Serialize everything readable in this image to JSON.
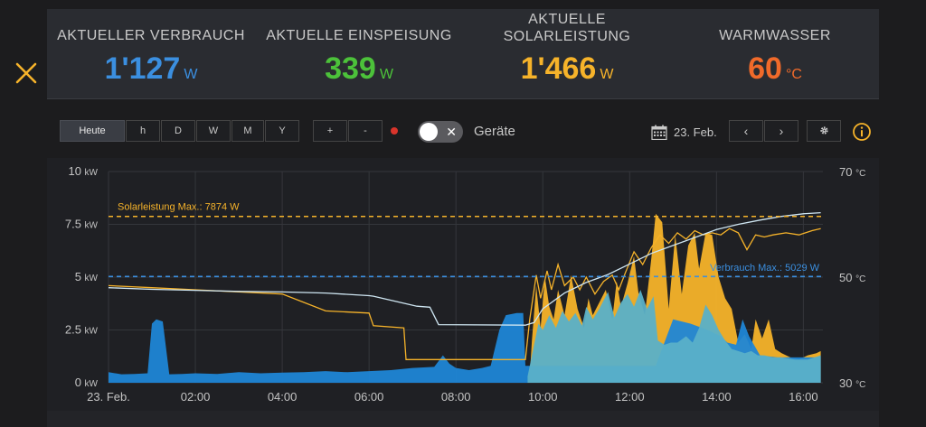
{
  "stats": [
    {
      "label": "AKTUELLER VERBRAUCH",
      "value": "1'127",
      "unit": "W",
      "color": "#3b8fe0"
    },
    {
      "label": "AKTUELLE EINSPEISUNG",
      "value": "339",
      "unit": "W",
      "color": "#4cc23a"
    },
    {
      "label": "AKTUELLE\nSOLARLEISTUNG",
      "value": "1'466",
      "unit": "W",
      "color": "#f6b32a"
    },
    {
      "label": "WARMWASSER",
      "value": "60",
      "unit": "°C",
      "color": "#f06a2a"
    }
  ],
  "toolbar": {
    "range_buttons": [
      "Heute",
      "h",
      "D",
      "W",
      "M",
      "Y"
    ],
    "active_range": "Heute",
    "zoom_in": "+",
    "zoom_out": "-",
    "toggle_label": "Geräte",
    "date": "23. Feb.",
    "prev": "‹",
    "next": "›"
  },
  "icons": {
    "close": "close-icon",
    "calendar": "calendar-icon",
    "settings": "gear-icon",
    "info": "info-icon"
  },
  "chart_data": {
    "type": "area",
    "x_ticks": [
      "23. Feb.",
      "02:00",
      "04:00",
      "06:00",
      "08:00",
      "10:00",
      "12:00",
      "14:00",
      "16:00"
    ],
    "y_left": {
      "ticks": [
        "0 kW",
        "2.5 kW",
        "5 kW",
        "7.5 kW",
        "10 kW"
      ],
      "range": [
        0,
        10
      ]
    },
    "y_right": {
      "ticks": [
        "30 °C",
        "50 °C",
        "70 °C"
      ],
      "range": [
        30,
        70
      ]
    },
    "grid": true,
    "reference_lines": [
      {
        "label": "Solarleistung Max.: 7874 W",
        "value": 7.874,
        "color": "#f6b32a"
      },
      {
        "label": "Verbrauch Max.: 5029 W",
        "value": 5.029,
        "color": "#3b8fe0"
      }
    ],
    "series": [
      {
        "kind": "solar-area",
        "color": "#f6b32a",
        "points": [
          [
            9.7,
            0.3
          ],
          [
            9.75,
            2.0
          ],
          [
            9.85,
            4.6
          ],
          [
            9.95,
            2.6
          ],
          [
            10.05,
            5.0
          ],
          [
            10.15,
            3.6
          ],
          [
            10.25,
            3.0
          ],
          [
            10.35,
            4.4
          ],
          [
            10.5,
            3.2
          ],
          [
            10.65,
            5.1
          ],
          [
            10.8,
            3.5
          ],
          [
            10.95,
            2.6
          ],
          [
            11.05,
            4.0
          ],
          [
            11.15,
            3.2
          ],
          [
            11.3,
            3.8
          ],
          [
            11.45,
            4.4
          ],
          [
            11.6,
            3.0
          ],
          [
            11.7,
            4.8
          ],
          [
            11.8,
            3.6
          ],
          [
            11.95,
            4.7
          ],
          [
            12.1,
            6.0
          ],
          [
            12.2,
            4.3
          ],
          [
            12.35,
            3.2
          ],
          [
            12.5,
            5.9
          ],
          [
            12.6,
            8.0
          ],
          [
            12.75,
            7.6
          ],
          [
            12.9,
            3.5
          ],
          [
            13.05,
            7.0
          ],
          [
            13.2,
            4.2
          ],
          [
            13.35,
            6.5
          ],
          [
            13.5,
            7.1
          ],
          [
            13.6,
            5.4
          ],
          [
            13.75,
            7.1
          ],
          [
            13.9,
            7.0
          ],
          [
            14.05,
            5.0
          ],
          [
            14.2,
            4.0
          ],
          [
            14.35,
            3.5
          ],
          [
            14.5,
            1.9
          ],
          [
            14.65,
            2.3
          ],
          [
            14.8,
            1.6
          ],
          [
            14.9,
            3.0
          ],
          [
            15.05,
            2.1
          ],
          [
            15.2,
            3.0
          ],
          [
            15.35,
            1.6
          ],
          [
            15.5,
            1.4
          ],
          [
            15.7,
            1.2
          ],
          [
            15.9,
            1.1
          ],
          [
            16.1,
            1.3
          ],
          [
            16.3,
            1.4
          ],
          [
            16.4,
            1.5
          ]
        ]
      },
      {
        "kind": "consumption-area",
        "color": "#1f86d6",
        "points": [
          [
            0.0,
            0.5
          ],
          [
            0.3,
            0.4
          ],
          [
            0.6,
            0.42
          ],
          [
            0.9,
            0.45
          ],
          [
            1.0,
            2.8
          ],
          [
            1.1,
            3.0
          ],
          [
            1.25,
            2.9
          ],
          [
            1.4,
            0.4
          ],
          [
            1.7,
            0.42
          ],
          [
            2.0,
            0.45
          ],
          [
            2.5,
            0.42
          ],
          [
            3.0,
            0.5
          ],
          [
            3.5,
            0.45
          ],
          [
            4.0,
            0.48
          ],
          [
            4.5,
            0.5
          ],
          [
            5.0,
            0.55
          ],
          [
            5.5,
            0.5
          ],
          [
            6.0,
            0.55
          ],
          [
            6.5,
            0.6
          ],
          [
            7.0,
            0.7
          ],
          [
            7.5,
            0.75
          ],
          [
            7.7,
            1.3
          ],
          [
            7.85,
            0.9
          ],
          [
            8.0,
            0.7
          ],
          [
            8.3,
            0.6
          ],
          [
            8.6,
            0.7
          ],
          [
            8.8,
            0.8
          ],
          [
            9.0,
            2.5
          ],
          [
            9.15,
            3.2
          ],
          [
            9.4,
            3.3
          ],
          [
            9.55,
            3.3
          ],
          [
            9.6,
            0.8
          ],
          [
            9.7,
            0.8
          ],
          [
            12.6,
            0.8
          ],
          [
            13.0,
            3.0
          ],
          [
            13.4,
            2.8
          ],
          [
            13.8,
            2.5
          ],
          [
            14.1,
            2.2
          ],
          [
            14.25,
            1.9
          ],
          [
            14.45,
            1.8
          ],
          [
            14.6,
            3.0
          ],
          [
            14.75,
            2.2
          ],
          [
            15.0,
            1.3
          ],
          [
            15.4,
            1.2
          ],
          [
            16.4,
            1.2
          ]
        ]
      },
      {
        "kind": "self-consumption-area",
        "color": "#5ab0c8",
        "points": [
          [
            9.65,
            0.3
          ],
          [
            9.8,
            1.8
          ],
          [
            9.9,
            2.8
          ],
          [
            10.0,
            2.5
          ],
          [
            10.15,
            3.2
          ],
          [
            10.3,
            2.6
          ],
          [
            10.45,
            3.4
          ],
          [
            10.6,
            2.9
          ],
          [
            10.75,
            3.3
          ],
          [
            10.9,
            2.7
          ],
          [
            11.0,
            3.6
          ],
          [
            11.15,
            3.0
          ],
          [
            11.3,
            3.5
          ],
          [
            11.5,
            4.3
          ],
          [
            11.65,
            3.1
          ],
          [
            11.8,
            3.8
          ],
          [
            11.95,
            4.2
          ],
          [
            12.1,
            3.6
          ],
          [
            12.25,
            4.4
          ],
          [
            12.4,
            3.5
          ],
          [
            12.55,
            4.1
          ],
          [
            12.65,
            2.0
          ],
          [
            12.8,
            1.8
          ],
          [
            12.95,
            1.9
          ],
          [
            13.1,
            1.9
          ],
          [
            13.3,
            2.2
          ],
          [
            13.45,
            1.9
          ],
          [
            13.6,
            2.6
          ],
          [
            13.75,
            3.7
          ],
          [
            13.9,
            3.2
          ],
          [
            14.05,
            2.5
          ],
          [
            14.2,
            2.0
          ],
          [
            14.35,
            1.6
          ],
          [
            14.5,
            1.5
          ],
          [
            14.65,
            1.4
          ],
          [
            14.8,
            1.5
          ],
          [
            14.95,
            1.3
          ],
          [
            15.1,
            1.3
          ],
          [
            15.3,
            1.2
          ],
          [
            15.5,
            1.2
          ],
          [
            15.8,
            1.1
          ],
          [
            16.1,
            1.1
          ],
          [
            16.4,
            1.3
          ]
        ]
      },
      {
        "kind": "solar-line",
        "axis": "left",
        "color": "#f6b32a",
        "points": [
          [
            0.0,
            4.6
          ],
          [
            1.0,
            4.5
          ],
          [
            2.0,
            4.4
          ],
          [
            3.0,
            4.3
          ],
          [
            4.0,
            4.2
          ],
          [
            5.0,
            3.4
          ],
          [
            6.0,
            3.3
          ],
          [
            6.1,
            2.7
          ],
          [
            6.8,
            2.6
          ],
          [
            6.85,
            1.1
          ],
          [
            9.6,
            1.1
          ],
          [
            9.7,
            3.0
          ],
          [
            9.85,
            5.1
          ],
          [
            9.95,
            4.0
          ],
          [
            10.1,
            5.3
          ],
          [
            10.2,
            4.4
          ],
          [
            10.35,
            5.6
          ],
          [
            10.5,
            4.6
          ],
          [
            10.7,
            5.0
          ],
          [
            10.85,
            4.4
          ],
          [
            11.0,
            5.0
          ],
          [
            11.2,
            4.2
          ],
          [
            11.4,
            4.8
          ],
          [
            11.6,
            5.1
          ],
          [
            11.75,
            4.4
          ],
          [
            11.9,
            5.2
          ],
          [
            12.1,
            6.2
          ],
          [
            12.3,
            5.6
          ],
          [
            12.5,
            6.4
          ],
          [
            12.7,
            7.0
          ],
          [
            12.9,
            6.6
          ],
          [
            13.1,
            7.1
          ],
          [
            13.3,
            6.8
          ],
          [
            13.5,
            7.2
          ],
          [
            13.7,
            7.0
          ],
          [
            13.9,
            7.1
          ],
          [
            14.1,
            7.0
          ],
          [
            14.3,
            7.3
          ],
          [
            14.5,
            7.1
          ],
          [
            14.7,
            6.3
          ],
          [
            14.9,
            7.0
          ],
          [
            15.1,
            6.9
          ],
          [
            15.3,
            7.0
          ],
          [
            15.6,
            7.1
          ],
          [
            15.9,
            7.0
          ],
          [
            16.2,
            7.2
          ],
          [
            16.4,
            7.3
          ]
        ]
      },
      {
        "kind": "temperature-line",
        "axis": "right",
        "color": "#cfe6f2",
        "points": [
          [
            0.0,
            48.0
          ],
          [
            1.0,
            47.7
          ],
          [
            2.0,
            47.5
          ],
          [
            3.0,
            47.3
          ],
          [
            4.0,
            47.2
          ],
          [
            5.0,
            47.0
          ],
          [
            6.0,
            46.5
          ],
          [
            6.1,
            46.4
          ],
          [
            7.1,
            44.5
          ],
          [
            7.4,
            44.3
          ],
          [
            7.6,
            41.0
          ],
          [
            9.6,
            40.9
          ],
          [
            9.8,
            41.4
          ],
          [
            10.0,
            44.0
          ],
          [
            10.5,
            47.0
          ],
          [
            11.0,
            49.0
          ],
          [
            11.5,
            50.5
          ],
          [
            12.0,
            52.5
          ],
          [
            12.5,
            54.5
          ],
          [
            13.0,
            56.0
          ],
          [
            13.5,
            57.5
          ],
          [
            14.0,
            59.0
          ],
          [
            14.5,
            60.0
          ],
          [
            15.0,
            60.8
          ],
          [
            15.5,
            61.5
          ],
          [
            16.0,
            62.0
          ],
          [
            16.4,
            62.2
          ]
        ]
      }
    ]
  }
}
